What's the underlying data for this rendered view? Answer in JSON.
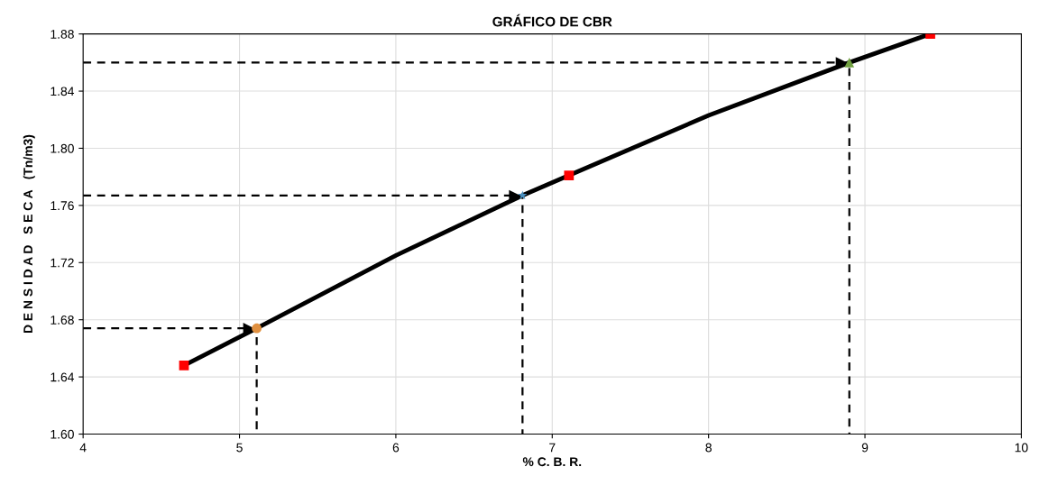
{
  "chart_data": {
    "type": "scatter",
    "title": "GRÁFICO DE CBR",
    "xlabel": "% C. B. R.",
    "ylabel": "D E N S I D A D   S E C A   (Tn/m3)",
    "xlim": [
      4,
      10
    ],
    "xticks": [
      4,
      5,
      6,
      7,
      8,
      9,
      10
    ],
    "ylim": [
      1.6,
      1.88
    ],
    "yticks": [
      {
        "value": 1.6,
        "label": "1.60"
      },
      {
        "value": 1.64,
        "label": "1.64"
      },
      {
        "value": 1.68,
        "label": "1.68"
      },
      {
        "value": 1.72,
        "label": "1.72"
      },
      {
        "value": 1.76,
        "label": "1.76"
      },
      {
        "value": 1.8,
        "label": "1.80"
      },
      {
        "value": 1.84,
        "label": "1.84"
      },
      {
        "value": 1.88,
        "label": "1.88"
      }
    ],
    "grid": true,
    "legend": false,
    "series": [
      {
        "type": "line",
        "color": "#000000",
        "marker": "none",
        "line_style": "solid",
        "x": [
          4.645,
          5.11,
          6.0,
          6.81,
          7.107,
          8.0,
          8.9,
          9.418
        ],
        "values": [
          1.648,
          1.674,
          1.725,
          1.767,
          1.781,
          1.823,
          1.86,
          1.88
        ]
      },
      {
        "color": "#ff0000",
        "marker": "square",
        "x": [
          4.645,
          7.107,
          9.418
        ],
        "values": [
          1.648,
          1.781,
          1.88
        ]
      },
      {
        "type": "line",
        "color": "#000000",
        "marker": "none",
        "line_style": "dashed",
        "x": [
          4,
          5.11,
          5.11
        ],
        "values": [
          1.674,
          1.674,
          1.6
        ]
      },
      {
        "type": "line",
        "color": "#000000",
        "marker": "none",
        "line_style": "dashed",
        "x": [
          4,
          6.81,
          6.81
        ],
        "values": [
          1.767,
          1.767,
          1.6
        ]
      },
      {
        "type": "line",
        "color": "#000000",
        "marker": "none",
        "line_style": "dashed",
        "x": [
          4,
          8.9,
          8.9
        ],
        "values": [
          1.86,
          1.86,
          1.6
        ]
      },
      {
        "type": "scatter",
        "color": "#e09040",
        "marker": "circle",
        "x": [
          5.11
        ],
        "values": [
          1.674
        ]
      },
      {
        "type": "scatter",
        "color": "#4a90c0",
        "marker": "star",
        "x": [
          6.81
        ],
        "values": [
          1.767
        ]
      },
      {
        "type": "scatter",
        "color": "#70a040",
        "marker": "triangle",
        "x": [
          8.9
        ],
        "values": [
          1.86
        ]
      }
    ]
  }
}
